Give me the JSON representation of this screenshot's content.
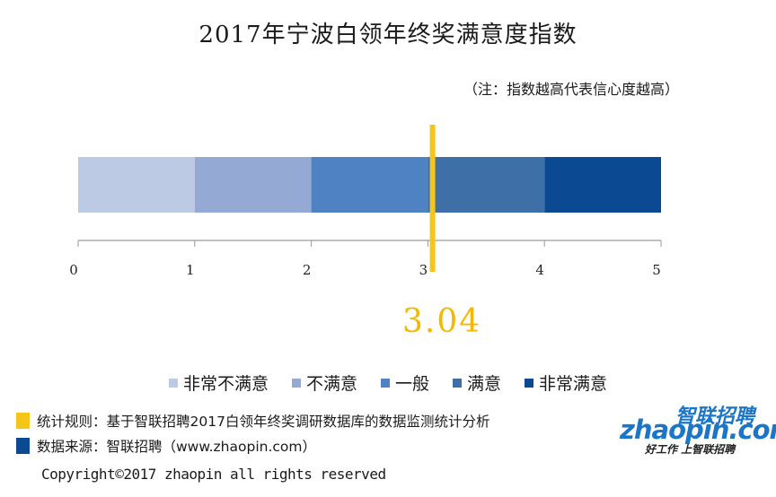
{
  "header": {
    "title": "2017年宁波白领年终奖满意度指数",
    "note": "（注：指数越高代表信心度越高）"
  },
  "chart_data": {
    "type": "bar",
    "orientation": "horizontal-stacked",
    "categories": [
      "非常不满意",
      "不满意",
      "一般",
      "满意",
      "非常满意"
    ],
    "ranges": [
      [
        0,
        1
      ],
      [
        1,
        2
      ],
      [
        2,
        3
      ],
      [
        3,
        4
      ],
      [
        4,
        5
      ]
    ],
    "colors": [
      "#bccbe3",
      "#94a9d3",
      "#4e82c2",
      "#3f6fa7",
      "#0b4992"
    ],
    "xlim": [
      0,
      5
    ],
    "ticks": [
      "0",
      "1",
      "2",
      "3",
      "4",
      "5"
    ],
    "marker_value": 3.04,
    "marker_color": "#f5c518",
    "marker_label": "3.04",
    "legend_position": "bottom"
  },
  "footnotes": [
    {
      "text": "统计规则：基于智联招聘2017白领年终奖调研数据库的数据监测统计分析",
      "color": "#f5c518"
    },
    {
      "text": "数据来源：智联招聘（www.zhaopin.com）",
      "color": "#0b4992"
    }
  ],
  "copyright": "Copyright©2017 zhaopin all rights reserved",
  "logo": {
    "name_cn": "智联招聘",
    "name_en": "zhaopin.com",
    "slogan": "好工作 上智联招聘"
  }
}
